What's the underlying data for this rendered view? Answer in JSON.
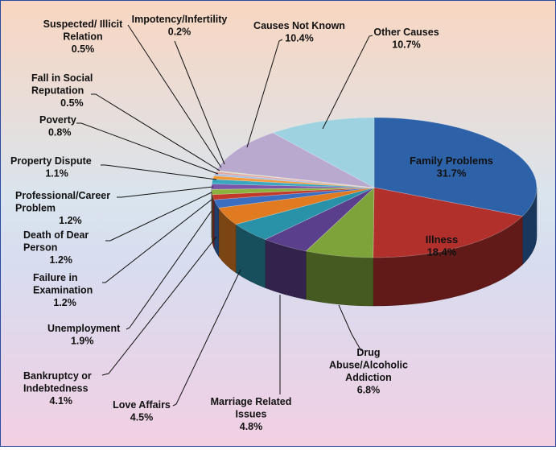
{
  "chart_data": {
    "type": "pie",
    "slices": [
      {
        "label": "Family Problems",
        "value": 31.7,
        "value_text": "31.7%",
        "color": "#2e62a8",
        "label_inside": true
      },
      {
        "label": "Illness",
        "value": 18.4,
        "value_text": "18.4%",
        "color": "#b1302c",
        "label_inside": true
      },
      {
        "label": "Drug Abuse/Alcoholic Addiction",
        "value": 6.8,
        "value_text": "6.8%",
        "color": "#7da33a"
      },
      {
        "label": "Marriage Related Issues",
        "value": 4.8,
        "value_text": "4.8%",
        "color": "#5a3f8c"
      },
      {
        "label": "Love Affairs",
        "value": 4.5,
        "value_text": "4.5%",
        "color": "#2a92a8"
      },
      {
        "label": "Bankruptcy or Indebtedness",
        "value": 4.1,
        "value_text": "4.1%",
        "color": "#e07b22"
      },
      {
        "label": "Unemployment",
        "value": 1.9,
        "value_text": "1.9%",
        "color": "#3a6ec0"
      },
      {
        "label": "Failure in Examination",
        "value": 1.2,
        "value_text": "1.2%",
        "color": "#c0392b"
      },
      {
        "label": "Death of Dear Person",
        "value": 1.2,
        "value_text": "1.2%",
        "color": "#8bb13e"
      },
      {
        "label": "Professional/Career Problem",
        "value": 1.2,
        "value_text": "1.2%",
        "color": "#7a55a8"
      },
      {
        "label": "Property Dispute",
        "value": 1.1,
        "value_text": "1.1%",
        "color": "#3aa6c0"
      },
      {
        "label": "Poverty",
        "value": 0.8,
        "value_text": "0.8%",
        "color": "#f29a3a"
      },
      {
        "label": "Fall in Social Reputation",
        "value": 0.5,
        "value_text": "0.5%",
        "color": "#a4bde0"
      },
      {
        "label": "Suspected/ Illicit Relation",
        "value": 0.5,
        "value_text": "0.5%",
        "color": "#e3a8a6"
      },
      {
        "label": "Impotency/Infertility",
        "value": 0.2,
        "value_text": "0.2%",
        "color": "#c9dca8"
      },
      {
        "label": "Causes Not Known",
        "value": 10.4,
        "value_text": "10.4%",
        "color": "#b9a9cf"
      },
      {
        "label": "Other Causes",
        "value": 10.7,
        "value_text": "10.7%",
        "color": "#9fd2e0"
      }
    ]
  }
}
